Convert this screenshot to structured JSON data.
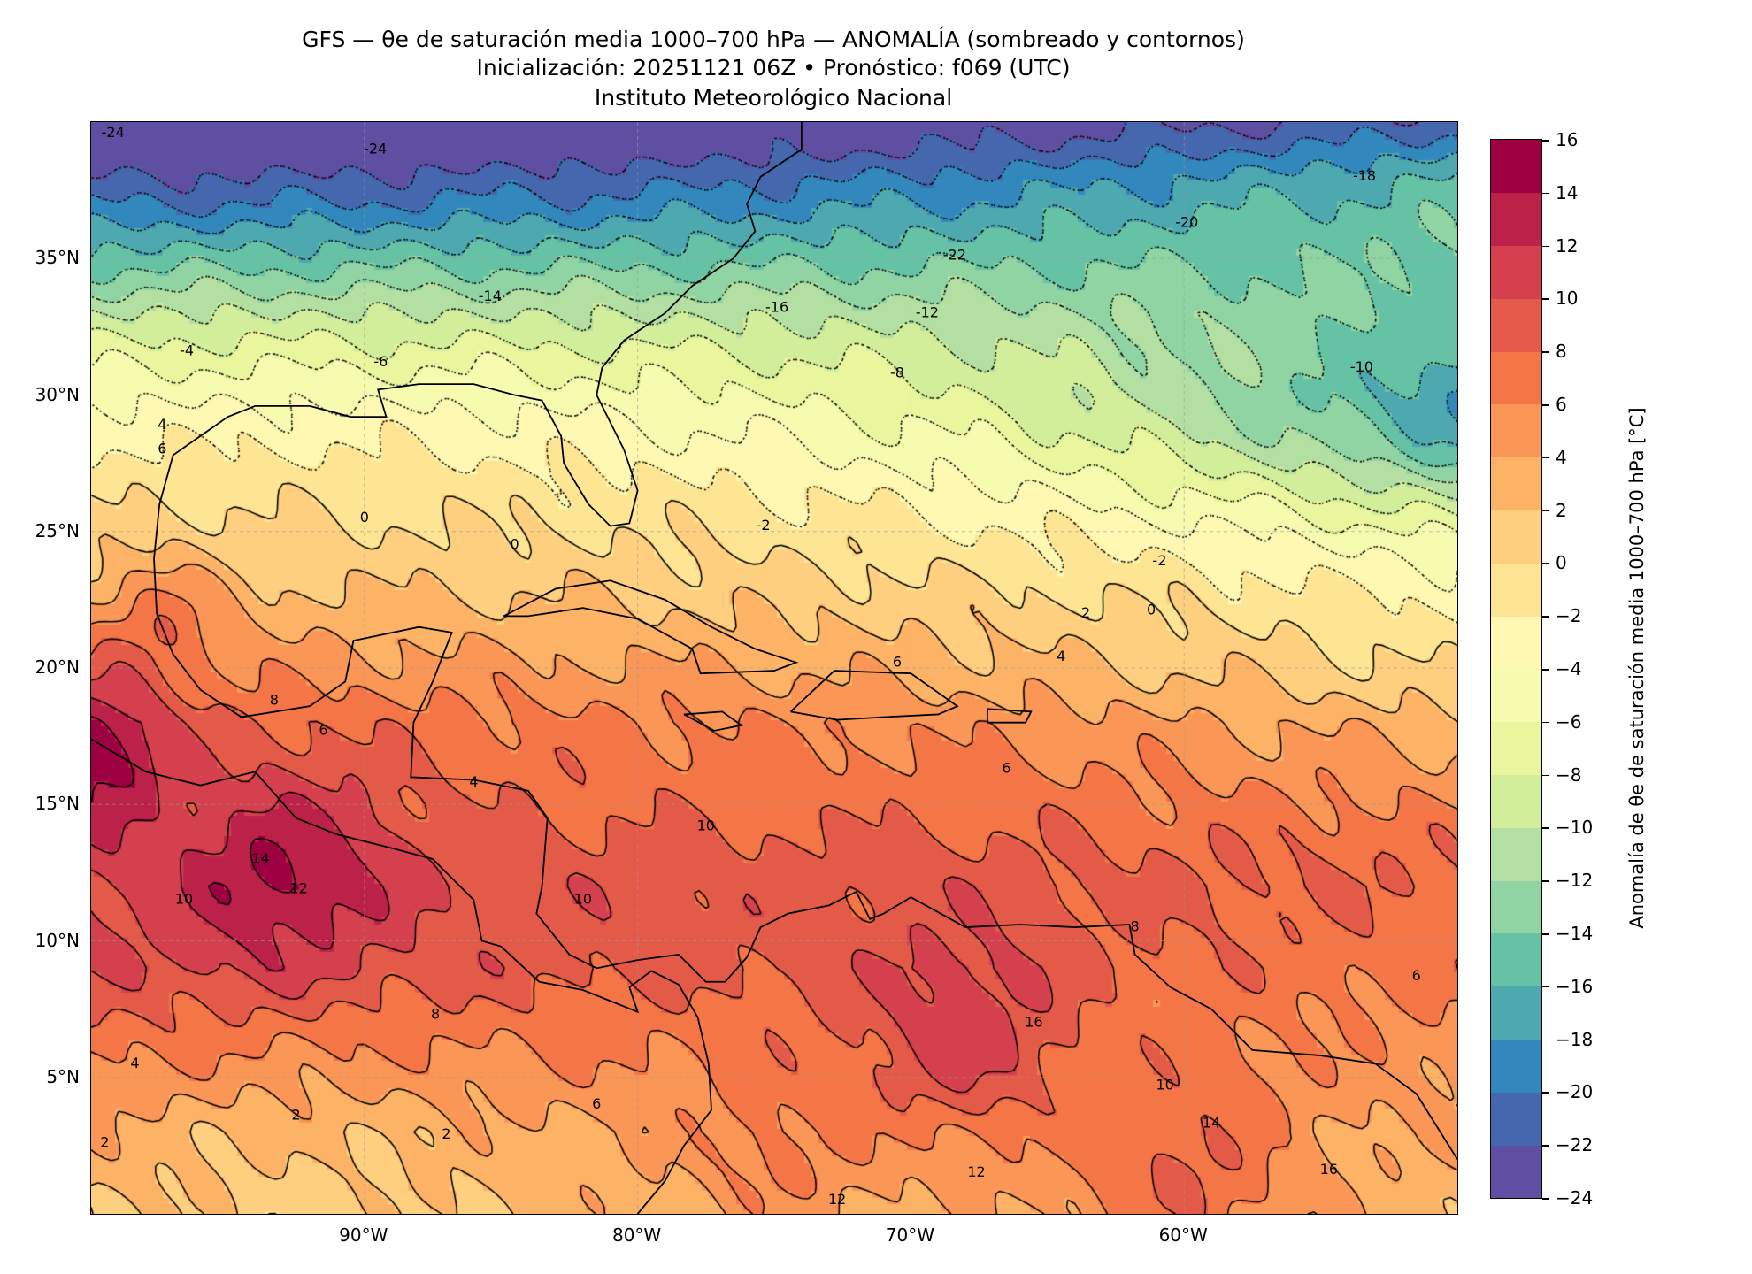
{
  "title": {
    "line1": "GFS — θe de saturación media 1000–700 hPa — ANOMALÍA (sombreado y contornos)",
    "line2": "Inicialización: 20251121 06Z   •   Pronóstico: f069 (UTC)",
    "line3": "Instituto Meteorológico Nacional"
  },
  "map": {
    "lon_range": [
      -100,
      -50
    ],
    "lat_range": [
      0,
      40
    ],
    "lat_ticks": [
      {
        "lat": 35,
        "label": "35°N"
      },
      {
        "lat": 30,
        "label": "30°N"
      },
      {
        "lat": 25,
        "label": "25°N"
      },
      {
        "lat": 20,
        "label": "20°N"
      },
      {
        "lat": 15,
        "label": "15°N"
      },
      {
        "lat": 10,
        "label": "10°N"
      },
      {
        "lat": 5,
        "label": "5°N"
      }
    ],
    "lon_ticks": [
      {
        "lon": -90,
        "label": "90°W"
      },
      {
        "lon": -80,
        "label": "80°W"
      },
      {
        "lon": -70,
        "label": "70°W"
      },
      {
        "lon": -60,
        "label": "60°W"
      }
    ],
    "contour_interval": 2,
    "contour_labels": [
      {
        "v": "-24",
        "lat": 39.6,
        "lon": -99.2
      },
      {
        "v": "-24",
        "lat": 39.0,
        "lon": -89.6
      },
      {
        "v": "-14",
        "lat": 33.6,
        "lon": -85.4
      },
      {
        "v": "-16",
        "lat": 33.2,
        "lon": -74.9
      },
      {
        "v": "-12",
        "lat": 33.0,
        "lon": -69.4
      },
      {
        "v": "-22",
        "lat": 35.1,
        "lon": -68.4
      },
      {
        "v": "-20",
        "lat": 36.3,
        "lon": -59.9
      },
      {
        "v": "-18",
        "lat": 38.0,
        "lon": -53.4
      },
      {
        "v": "-10",
        "lat": 31.0,
        "lon": -53.5
      },
      {
        "v": "-8",
        "lat": 30.8,
        "lon": -70.5
      },
      {
        "v": "-6",
        "lat": 31.2,
        "lon": -89.4
      },
      {
        "v": "-4",
        "lat": 31.6,
        "lon": -96.5
      },
      {
        "v": "-2",
        "lat": 25.2,
        "lon": -75.4
      },
      {
        "v": "-2",
        "lat": 23.9,
        "lon": -60.9
      },
      {
        "v": "0",
        "lat": 25.5,
        "lon": -90.0
      },
      {
        "v": "0",
        "lat": 24.5,
        "lon": -84.5
      },
      {
        "v": "2",
        "lat": 22.0,
        "lon": -63.6
      },
      {
        "v": "0",
        "lat": 22.1,
        "lon": -61.2
      },
      {
        "v": "4",
        "lat": 28.9,
        "lon": -97.4
      },
      {
        "v": "6",
        "lat": 28.0,
        "lon": -97.4
      },
      {
        "v": "8",
        "lat": 18.8,
        "lon": -93.3
      },
      {
        "v": "6",
        "lat": 17.7,
        "lon": -91.5
      },
      {
        "v": "4",
        "lat": 15.8,
        "lon": -86.0
      },
      {
        "v": "6",
        "lat": 20.2,
        "lon": -70.5
      },
      {
        "v": "4",
        "lat": 20.4,
        "lon": -64.5
      },
      {
        "v": "6",
        "lat": 16.3,
        "lon": -66.5
      },
      {
        "v": "10",
        "lat": 14.2,
        "lon": -77.5
      },
      {
        "v": "10",
        "lat": 11.5,
        "lon": -82.0
      },
      {
        "v": "14",
        "lat": 13.0,
        "lon": -93.8
      },
      {
        "v": "12",
        "lat": 11.9,
        "lon": -92.4
      },
      {
        "v": "10",
        "lat": 11.5,
        "lon": -96.6
      },
      {
        "v": "8",
        "lat": 7.3,
        "lon": -87.4
      },
      {
        "v": "6",
        "lat": 4.0,
        "lon": -81.5
      },
      {
        "v": "4",
        "lat": 5.5,
        "lon": -98.4
      },
      {
        "v": "2",
        "lat": 3.6,
        "lon": -92.5
      },
      {
        "v": "2",
        "lat": 2.9,
        "lon": -87.0
      },
      {
        "v": "2",
        "lat": 2.6,
        "lon": -99.5
      },
      {
        "v": "16",
        "lat": 7.0,
        "lon": -65.5
      },
      {
        "v": "10",
        "lat": 4.7,
        "lon": -60.7
      },
      {
        "v": "12",
        "lat": 1.5,
        "lon": -67.6
      },
      {
        "v": "12",
        "lat": 0.5,
        "lon": -72.7
      },
      {
        "v": "14",
        "lat": 3.3,
        "lon": -59.0
      },
      {
        "v": "16",
        "lat": 1.6,
        "lon": -54.7
      },
      {
        "v": "6",
        "lat": 8.7,
        "lon": -51.5
      },
      {
        "v": "8",
        "lat": 10.5,
        "lon": -61.8
      }
    ]
  },
  "colorbar": {
    "label": "Anomalía de θe de saturación media 1000–700 hPa [°C]",
    "levels": [
      -24,
      -22,
      -20,
      -18,
      -16,
      -14,
      -12,
      -10,
      -8,
      -6,
      -4,
      -2,
      0,
      2,
      4,
      6,
      8,
      10,
      12,
      14,
      16
    ],
    "tick_labels": [
      "−24",
      "−22",
      "−20",
      "−18",
      "−16",
      "−14",
      "−12",
      "−10",
      "−8",
      "−6",
      "−4",
      "−2",
      "0",
      "2",
      "4",
      "6",
      "8",
      "10",
      "12",
      "14",
      "16"
    ],
    "colors": [
      "#5e4fa2",
      "#4467ae",
      "#3288bd",
      "#4ea8b0",
      "#66c2a5",
      "#90d4a4",
      "#b3e0a2",
      "#d3ee9b",
      "#e9f69d",
      "#f7fbb0",
      "#fef8b3",
      "#fee593",
      "#fdcf7f",
      "#fdb366",
      "#fa9656",
      "#f47647",
      "#e45a49",
      "#d5404e",
      "#bc2249",
      "#9e0142"
    ]
  }
}
